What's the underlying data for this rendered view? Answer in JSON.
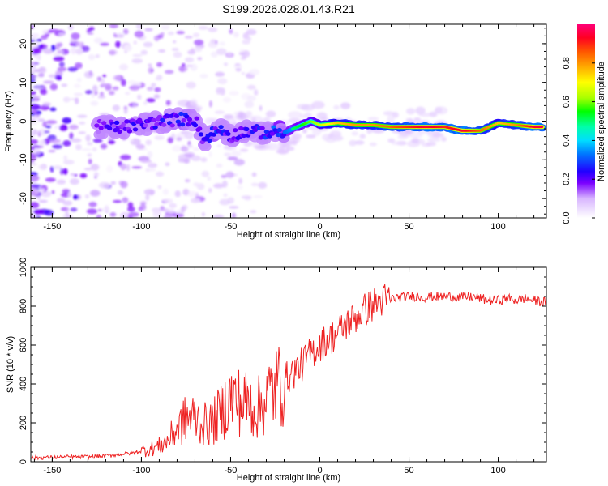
{
  "title": "S199.2026.028.01.43.R21",
  "colors": {
    "snr_line": "#ee2222",
    "frame": "#000000"
  },
  "chart_data": [
    {
      "type": "heatmap",
      "xlabel": "Height of straight line (km)",
      "ylabel": "Frequency (Hz)",
      "xlim": [
        -162,
        127
      ],
      "ylim": [
        -25,
        25
      ],
      "x_ticks": [
        -150,
        -100,
        -50,
        0,
        50,
        100
      ],
      "y_ticks": [
        -20,
        -10,
        0,
        10,
        20
      ],
      "colorbar": {
        "label": "Normalized spectral amplitude",
        "range": [
          0,
          1
        ],
        "ticks": [
          0.0,
          0.2,
          0.4,
          0.6,
          0.8
        ]
      },
      "ridge": {
        "x": [
          -125,
          -110,
          -95,
          -80,
          -70,
          -65,
          -60,
          -55,
          -50,
          -45,
          -40,
          -30,
          -20,
          -15,
          -10,
          -5,
          0,
          10,
          20,
          30,
          40,
          50,
          60,
          70,
          80,
          90,
          100,
          110,
          120,
          125
        ],
        "freq": [
          -1.5,
          -1.5,
          -0.5,
          0.5,
          0.5,
          -5,
          -3,
          -2,
          -4,
          -3,
          -2.5,
          -3,
          -3,
          -2,
          -1,
          0,
          -1,
          -0.5,
          -1,
          -1,
          -1.5,
          -1.5,
          -1.5,
          -1.5,
          -2.5,
          -2.5,
          -0.5,
          -1,
          -1.5,
          -1.5
        ],
        "amplitude": [
          0.25,
          0.3,
          0.3,
          0.35,
          0.3,
          0.3,
          0.35,
          0.35,
          0.25,
          0.3,
          0.3,
          0.35,
          0.45,
          0.5,
          0.55,
          0.6,
          0.65,
          0.75,
          0.8,
          0.8,
          0.85,
          0.9,
          0.95,
          0.9,
          0.95,
          0.85,
          0.75,
          0.8,
          0.95,
          0.95
        ]
      }
    },
    {
      "type": "line",
      "xlabel": "Height of straight line (km)",
      "ylabel": "SNR (10 * v/v)",
      "xlim": [
        -162,
        127
      ],
      "ylim": [
        0,
        1000
      ],
      "x_ticks": [
        -150,
        -100,
        -50,
        0,
        50,
        100
      ],
      "y_ticks": [
        0,
        200,
        400,
        600,
        800,
        1000
      ],
      "series": [
        {
          "name": "SNR",
          "x": [
            -162,
            -150,
            -140,
            -130,
            -120,
            -110,
            -105,
            -100,
            -95,
            -90,
            -85,
            -80,
            -75,
            -70,
            -65,
            -60,
            -55,
            -50,
            -45,
            -40,
            -35,
            -30,
            -25,
            -20,
            -15,
            -10,
            -5,
            0,
            5,
            10,
            15,
            20,
            25,
            30,
            35,
            40,
            45,
            50,
            55,
            60,
            65,
            70,
            75,
            80,
            85,
            90,
            95,
            100,
            105,
            110,
            115,
            120,
            127
          ],
          "values": [
            20,
            22,
            25,
            25,
            30,
            40,
            45,
            55,
            65,
            80,
            110,
            170,
            220,
            230,
            190,
            200,
            260,
            330,
            310,
            300,
            270,
            330,
            380,
            420,
            460,
            500,
            560,
            600,
            630,
            660,
            710,
            740,
            780,
            810,
            830,
            840,
            845,
            850,
            850,
            845,
            850,
            850,
            850,
            845,
            850,
            840,
            830,
            830,
            840,
            830,
            840,
            830,
            820
          ]
        }
      ]
    }
  ]
}
